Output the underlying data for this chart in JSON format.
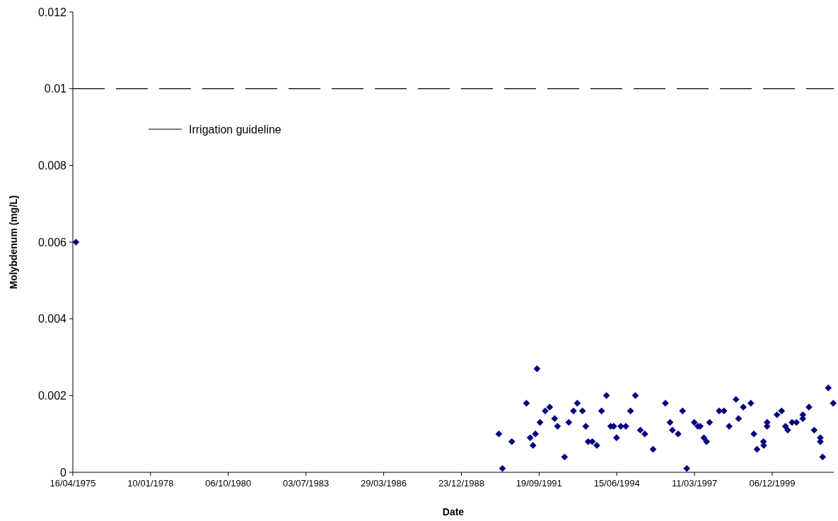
{
  "chart_data": {
    "type": "scatter",
    "xlabel": "Date",
    "ylabel": "Molybdenum (mg/L)",
    "xlim": [
      "1975-04-16",
      "2002-02-05"
    ],
    "xticks": [
      {
        "value": "1975-04-16",
        "label": "16/04/1975"
      },
      {
        "value": "1978-01-10",
        "label": "10/01/1978"
      },
      {
        "value": "1980-10-06",
        "label": "06/10/1980"
      },
      {
        "value": "1983-07-03",
        "label": "03/07/1983"
      },
      {
        "value": "1986-03-29",
        "label": "29/03/1986"
      },
      {
        "value": "1988-12-23",
        "label": "23/12/1988"
      },
      {
        "value": "1991-09-19",
        "label": "19/09/1991"
      },
      {
        "value": "1994-06-15",
        "label": "15/06/1994"
      },
      {
        "value": "1997-03-11",
        "label": "11/03/1997"
      },
      {
        "value": "1999-12-06",
        "label": "06/12/1999"
      }
    ],
    "ylim": [
      0,
      0.012
    ],
    "yticks": [
      0,
      0.002,
      0.004,
      0.006,
      0.008,
      0.01,
      0.012
    ],
    "grid": false,
    "legend": "top left",
    "series": [
      {
        "color": "#000080",
        "marker": "diamond",
        "x": [
          "1975-05-26",
          "1990-04-19",
          "1990-06-04",
          "1990-10-03",
          "1991-04-09",
          "1991-05-27",
          "1991-07-03",
          "1991-08-03",
          "1991-08-23",
          "1991-10-01",
          "1991-12-07",
          "1992-02-03",
          "1992-04-06",
          "1992-05-13",
          "1992-08-12",
          "1992-10-05",
          "1992-12-05",
          "1993-01-22",
          "1993-03-30",
          "1993-05-12",
          "1993-06-11",
          "1993-08-04",
          "1993-10-01",
          "1993-12-01",
          "1994-02-02",
          "1994-03-29",
          "1994-05-07",
          "1994-06-12",
          "1994-08-06",
          "1994-10-09",
          "1994-12-08",
          "1995-02-09",
          "1995-04-14",
          "1995-06-11",
          "1995-09-25",
          "1996-03-01",
          "1996-04-30",
          "1996-05-31",
          "1996-08-12",
          "1996-10-08",
          "1996-12-02",
          "1997-03-08",
          "1997-04-23",
          "1997-05-23",
          "1997-07-10",
          "1997-08-13",
          "1997-09-21",
          "1998-01-23",
          "1998-03-25",
          "1998-05-31",
          "1998-08-27",
          "1998-09-29",
          "1998-11-29",
          "1999-03-06",
          "1999-04-14",
          "1999-05-24",
          "1999-08-15",
          "1999-08-19",
          "1999-10-01",
          "1999-10-01",
          "2000-02-05",
          "2000-04-05",
          "2000-05-24",
          "2000-06-23",
          "2000-08-17",
          "2000-10-13",
          "2001-01-03",
          "2001-01-03",
          "2001-03-23",
          "2001-05-29",
          "2001-08-16",
          "2001-08-16",
          "2001-09-15",
          "2001-11-27",
          "2002-01-29"
        ],
        "values": [
          0.006,
          0.001,
          0.0001,
          0.0008,
          0.0018,
          0.0009,
          0.0007,
          0.001,
          0.0027,
          0.0013,
          0.0016,
          0.0017,
          0.0014,
          0.0012,
          0.0004,
          0.0013,
          0.0016,
          0.0018,
          0.0016,
          0.0012,
          0.0008,
          0.0008,
          0.0007,
          0.0016,
          0.002,
          0.0012,
          0.0012,
          0.0009,
          0.0012,
          0.0012,
          0.0016,
          0.002,
          0.0011,
          0.001,
          0.0006,
          0.0018,
          0.0013,
          0.0011,
          0.001,
          0.0016,
          0.0001,
          0.0013,
          0.0012,
          0.0012,
          0.0009,
          0.0008,
          0.0013,
          0.0016,
          0.0016,
          0.0012,
          0.0019,
          0.0014,
          0.0017,
          0.0018,
          0.001,
          0.0006,
          0.0008,
          0.0007,
          0.0013,
          0.0012,
          0.0015,
          0.0016,
          0.0012,
          0.0011,
          0.0013,
          0.0013,
          0.0015,
          0.0014,
          0.0017,
          0.0011,
          0.0009,
          0.0008,
          0.0004,
          0.0022,
          0.0018
        ]
      },
      {
        "type": "line",
        "name": "Irrigation guideline",
        "color": "#000000",
        "line_style": "dashed",
        "marker": "none",
        "x": [
          "1975-04-16",
          "2002-02-05"
        ],
        "values": [
          0.01,
          0.01
        ]
      }
    ]
  }
}
